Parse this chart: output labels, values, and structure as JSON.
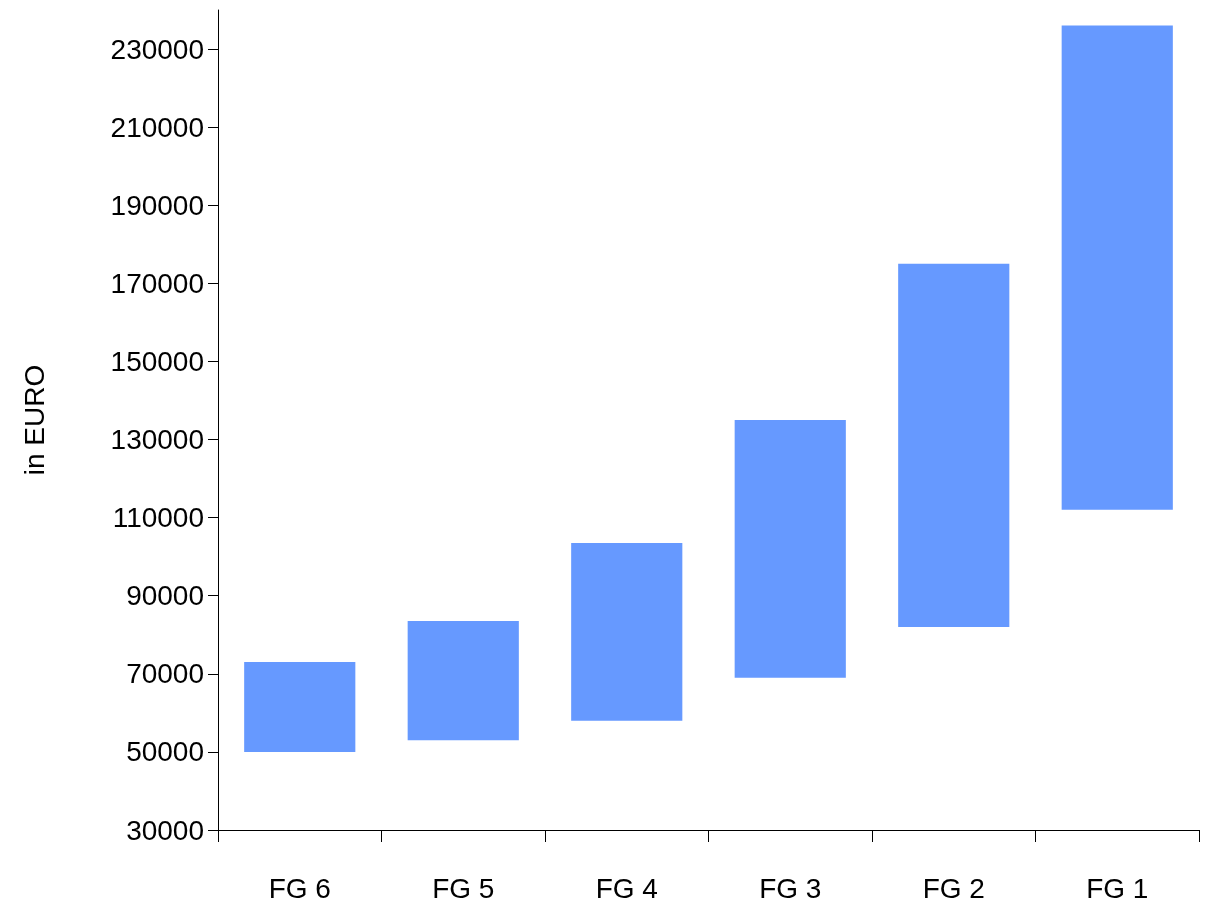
{
  "chart_data": {
    "type": "bar",
    "ylabel": "in EURO",
    "categories": [
      "FG 6",
      "FG 5",
      "FG 4",
      "FG 3",
      "FG 2",
      "FG 1"
    ],
    "base": [
      50000,
      53000,
      58000,
      69000,
      82000,
      112000
    ],
    "values": [
      23000,
      30500,
      45500,
      66000,
      93000,
      124000
    ],
    "color": "#6699ff",
    "ylim": [
      30000,
      240000
    ],
    "yticks": [
      30000,
      50000,
      70000,
      90000,
      110000,
      130000,
      150000,
      170000,
      190000,
      210000,
      230000
    ],
    "grid": false
  }
}
